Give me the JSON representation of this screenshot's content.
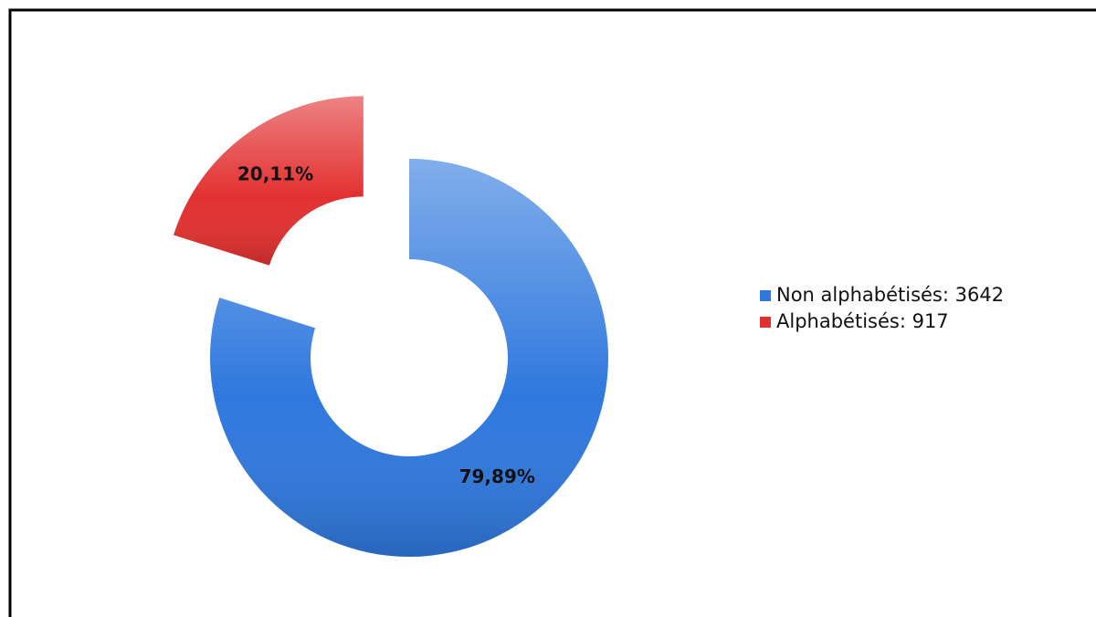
{
  "chart_data": {
    "type": "pie",
    "donut": true,
    "categories": [
      "Non alphabétisés: 3642",
      "Alphabétisés: 917"
    ],
    "values": [
      79.89,
      20.11
    ],
    "value_labels": [
      "79,89%",
      "20,11%"
    ],
    "colors": [
      "#2f78de",
      "#e23030"
    ],
    "exploded": [
      false,
      true
    ],
    "legend": "right"
  }
}
